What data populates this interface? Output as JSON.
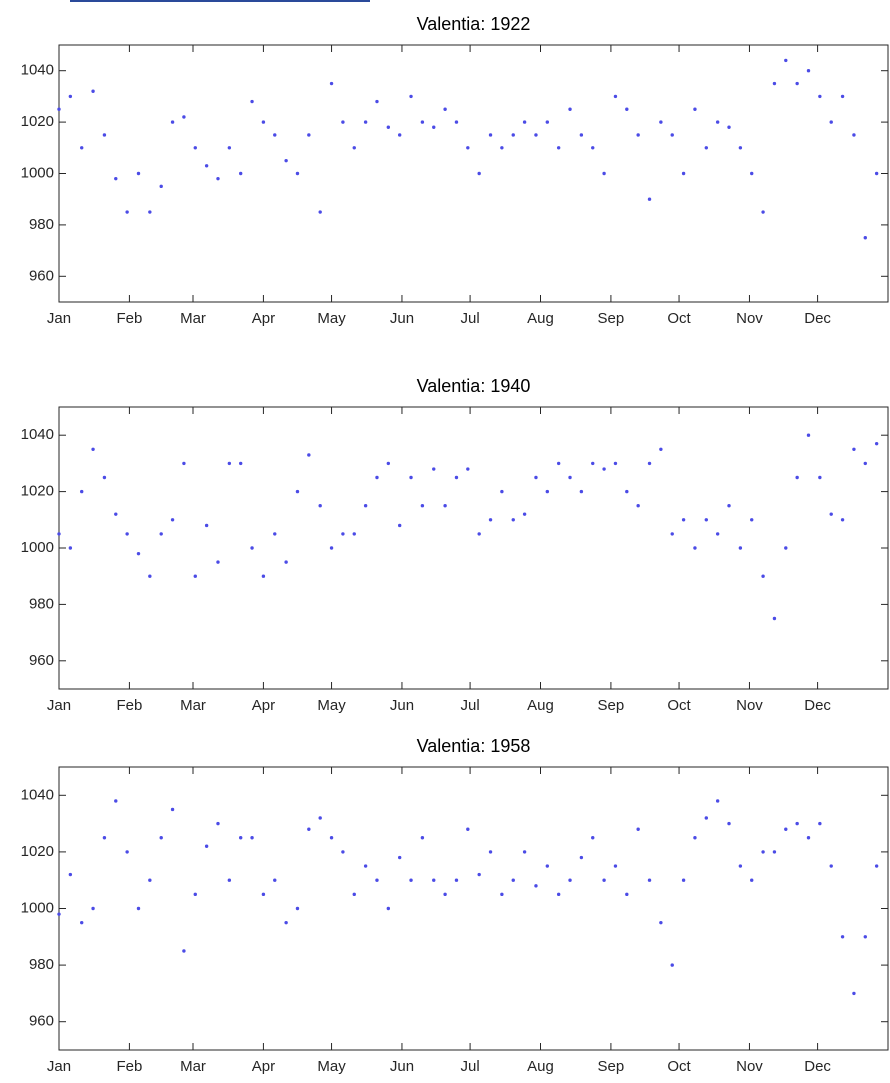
{
  "chart_data": [
    {
      "type": "scatter",
      "title": "Valentia: 1922",
      "xlim": [
        1,
        366
      ],
      "ylim": [
        950,
        1050
      ],
      "yticks": [
        960,
        980,
        1000,
        1020,
        1040
      ],
      "xticks": [
        {
          "value": 1,
          "label": "Jan"
        },
        {
          "value": 32,
          "label": "Feb"
        },
        {
          "value": 60,
          "label": "Mar"
        },
        {
          "value": 91,
          "label": "Apr"
        },
        {
          "value": 121,
          "label": "May"
        },
        {
          "value": 152,
          "label": "Jun"
        },
        {
          "value": 182,
          "label": "Jul"
        },
        {
          "value": 213,
          "label": "Aug"
        },
        {
          "value": 244,
          "label": "Sep"
        },
        {
          "value": 274,
          "label": "Oct"
        },
        {
          "value": 305,
          "label": "Nov"
        },
        {
          "value": 335,
          "label": "Dec"
        }
      ],
      "series": [
        {
          "color": "#4b4be6",
          "x": [
            1,
            6,
            11,
            16,
            21,
            26,
            31,
            36,
            41,
            46,
            51,
            56,
            61,
            66,
            71,
            76,
            81,
            86,
            91,
            96,
            101,
            106,
            111,
            116,
            121,
            126,
            131,
            136,
            141,
            146,
            151,
            156,
            161,
            166,
            171,
            176,
            181,
            186,
            191,
            196,
            201,
            206,
            211,
            216,
            221,
            226,
            231,
            236,
            241,
            246,
            251,
            256,
            261,
            266,
            271,
            276,
            281,
            286,
            291,
            296,
            301,
            306,
            311,
            316,
            321,
            326,
            331,
            336,
            341,
            346,
            351,
            356,
            361
          ],
          "values": [
            1025,
            1030,
            1010,
            1032,
            1015,
            998,
            985,
            1000,
            985,
            995,
            1020,
            1022,
            1010,
            1003,
            998,
            1010,
            1000,
            1028,
            1020,
            1015,
            1005,
            1000,
            1015,
            985,
            1035,
            1020,
            1010,
            1020,
            1028,
            1018,
            1015,
            1030,
            1020,
            1018,
            1025,
            1020,
            1010,
            1000,
            1015,
            1010,
            1015,
            1020,
            1015,
            1020,
            1010,
            1025,
            1015,
            1010,
            1000,
            1030,
            1025,
            1015,
            990,
            1020,
            1015,
            1000,
            1025,
            1010,
            1020,
            1018,
            1010,
            1000,
            985,
            1035,
            1044,
            1035,
            1040,
            1030,
            1020,
            1030,
            1015,
            975,
            1000
          ]
        }
      ]
    },
    {
      "type": "scatter",
      "title": "Valentia: 1940",
      "xlim": [
        1,
        366
      ],
      "ylim": [
        950,
        1050
      ],
      "yticks": [
        960,
        980,
        1000,
        1020,
        1040
      ],
      "xticks": [
        {
          "value": 1,
          "label": "Jan"
        },
        {
          "value": 32,
          "label": "Feb"
        },
        {
          "value": 60,
          "label": "Mar"
        },
        {
          "value": 91,
          "label": "Apr"
        },
        {
          "value": 121,
          "label": "May"
        },
        {
          "value": 152,
          "label": "Jun"
        },
        {
          "value": 182,
          "label": "Jul"
        },
        {
          "value": 213,
          "label": "Aug"
        },
        {
          "value": 244,
          "label": "Sep"
        },
        {
          "value": 274,
          "label": "Oct"
        },
        {
          "value": 305,
          "label": "Nov"
        },
        {
          "value": 335,
          "label": "Dec"
        }
      ],
      "series": [
        {
          "color": "#4b4be6",
          "x": [
            1,
            6,
            11,
            16,
            21,
            26,
            31,
            36,
            41,
            46,
            51,
            56,
            61,
            66,
            71,
            76,
            81,
            86,
            91,
            96,
            101,
            106,
            111,
            116,
            121,
            126,
            131,
            136,
            141,
            146,
            151,
            156,
            161,
            166,
            171,
            176,
            181,
            186,
            191,
            196,
            201,
            206,
            211,
            216,
            221,
            226,
            231,
            236,
            241,
            246,
            251,
            256,
            261,
            266,
            271,
            276,
            281,
            286,
            291,
            296,
            301,
            306,
            311,
            316,
            321,
            326,
            331,
            336,
            341,
            346,
            351,
            356,
            361
          ],
          "values": [
            1005,
            1000,
            1020,
            1035,
            1025,
            1012,
            1005,
            998,
            990,
            1005,
            1010,
            1030,
            990,
            1008,
            995,
            1030,
            1030,
            1000,
            990,
            1005,
            995,
            1020,
            1033,
            1015,
            1000,
            1005,
            1005,
            1015,
            1025,
            1030,
            1008,
            1025,
            1015,
            1028,
            1015,
            1025,
            1028,
            1005,
            1010,
            1020,
            1010,
            1012,
            1025,
            1020,
            1030,
            1025,
            1020,
            1030,
            1028,
            1030,
            1020,
            1015,
            1030,
            1035,
            1005,
            1010,
            1000,
            1010,
            1005,
            1015,
            1000,
            1010,
            990,
            975,
            1000,
            1025,
            1040,
            1025,
            1012,
            1010,
            1035,
            1030,
            1037
          ]
        }
      ]
    },
    {
      "type": "scatter",
      "title": "Valentia: 1958",
      "xlim": [
        1,
        366
      ],
      "ylim": [
        950,
        1050
      ],
      "yticks": [
        960,
        980,
        1000,
        1020,
        1040
      ],
      "xticks": [
        {
          "value": 1,
          "label": "Jan"
        },
        {
          "value": 32,
          "label": "Feb"
        },
        {
          "value": 60,
          "label": "Mar"
        },
        {
          "value": 91,
          "label": "Apr"
        },
        {
          "value": 121,
          "label": "May"
        },
        {
          "value": 152,
          "label": "Jun"
        },
        {
          "value": 182,
          "label": "Jul"
        },
        {
          "value": 213,
          "label": "Aug"
        },
        {
          "value": 244,
          "label": "Sep"
        },
        {
          "value": 274,
          "label": "Oct"
        },
        {
          "value": 305,
          "label": "Nov"
        },
        {
          "value": 335,
          "label": "Dec"
        }
      ],
      "series": [
        {
          "color": "#4b4be6",
          "x": [
            1,
            6,
            11,
            16,
            21,
            26,
            31,
            36,
            41,
            46,
            51,
            56,
            61,
            66,
            71,
            76,
            81,
            86,
            91,
            96,
            101,
            106,
            111,
            116,
            121,
            126,
            131,
            136,
            141,
            146,
            151,
            156,
            161,
            166,
            171,
            176,
            181,
            186,
            191,
            196,
            201,
            206,
            211,
            216,
            221,
            226,
            231,
            236,
            241,
            246,
            251,
            256,
            261,
            266,
            271,
            276,
            281,
            286,
            291,
            296,
            301,
            306,
            311,
            316,
            321,
            326,
            331,
            336,
            341,
            346,
            351,
            356,
            361
          ],
          "values": [
            998,
            1012,
            995,
            1000,
            1025,
            1038,
            1020,
            1000,
            1010,
            1025,
            1035,
            985,
            1005,
            1022,
            1030,
            1010,
            1025,
            1025,
            1005,
            1010,
            995,
            1000,
            1028,
            1032,
            1025,
            1020,
            1005,
            1015,
            1010,
            1000,
            1018,
            1010,
            1025,
            1010,
            1005,
            1010,
            1028,
            1012,
            1020,
            1005,
            1010,
            1020,
            1008,
            1015,
            1005,
            1010,
            1018,
            1025,
            1010,
            1015,
            1005,
            1028,
            1010,
            995,
            980,
            1010,
            1025,
            1032,
            1038,
            1030,
            1015,
            1010,
            1020,
            1020,
            1028,
            1030,
            1025,
            1030,
            1015,
            990,
            970,
            990,
            1015
          ]
        }
      ]
    }
  ]
}
